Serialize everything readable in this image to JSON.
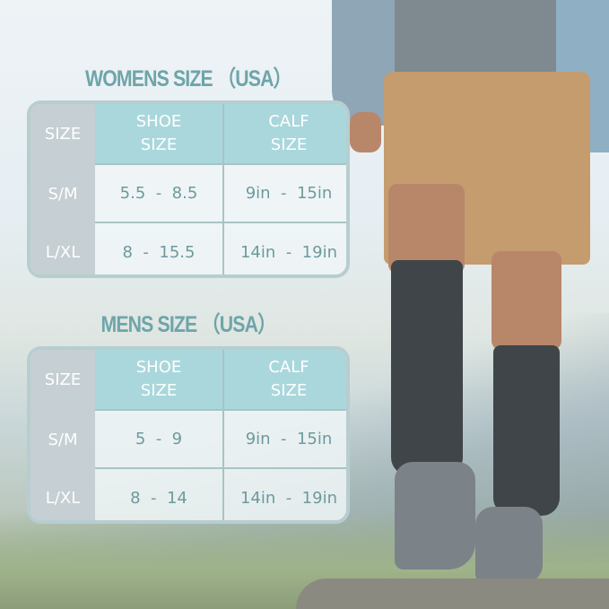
{
  "womens": {
    "title": "WOMENS SIZE （USA）",
    "headers": [
      "SIZE",
      "SHOE\nSIZE",
      "CALF\nSIZE"
    ],
    "rows": [
      [
        "S/M",
        "5.5  -  8.5",
        "9in  -  15in"
      ],
      [
        "L/XL",
        "8  -  15.5",
        "14in  -  19in"
      ]
    ]
  },
  "mens": {
    "title": "MENS SIZE （USA）",
    "headers": [
      "SIZE",
      "SHOE\nSIZE",
      "CALF\nSIZE"
    ],
    "rows": [
      [
        "S/M",
        "5  -  9",
        "9in  -  15in"
      ],
      [
        "L/XL",
        "8  -  14",
        "14in  -  19in"
      ]
    ]
  },
  "colors": {
    "title": "#6ea5a8",
    "header": "#a9d7dc",
    "size_column": "#c6cfd3",
    "text": "#6d9a9c"
  }
}
